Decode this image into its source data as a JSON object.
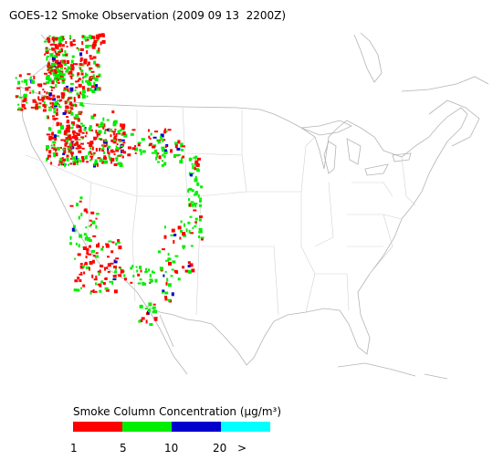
{
  "title": "GOES-12 Smoke Observation (2009 09 13  2200Z)",
  "legend": {
    "title": "Smoke Column Concentration (μg/m³)",
    "colors": [
      "#ff0000",
      "#00ee00",
      "#0000cc",
      "#00ffff"
    ],
    "labels": [
      "1",
      "5",
      "10",
      "20",
      ">"
    ]
  }
}
